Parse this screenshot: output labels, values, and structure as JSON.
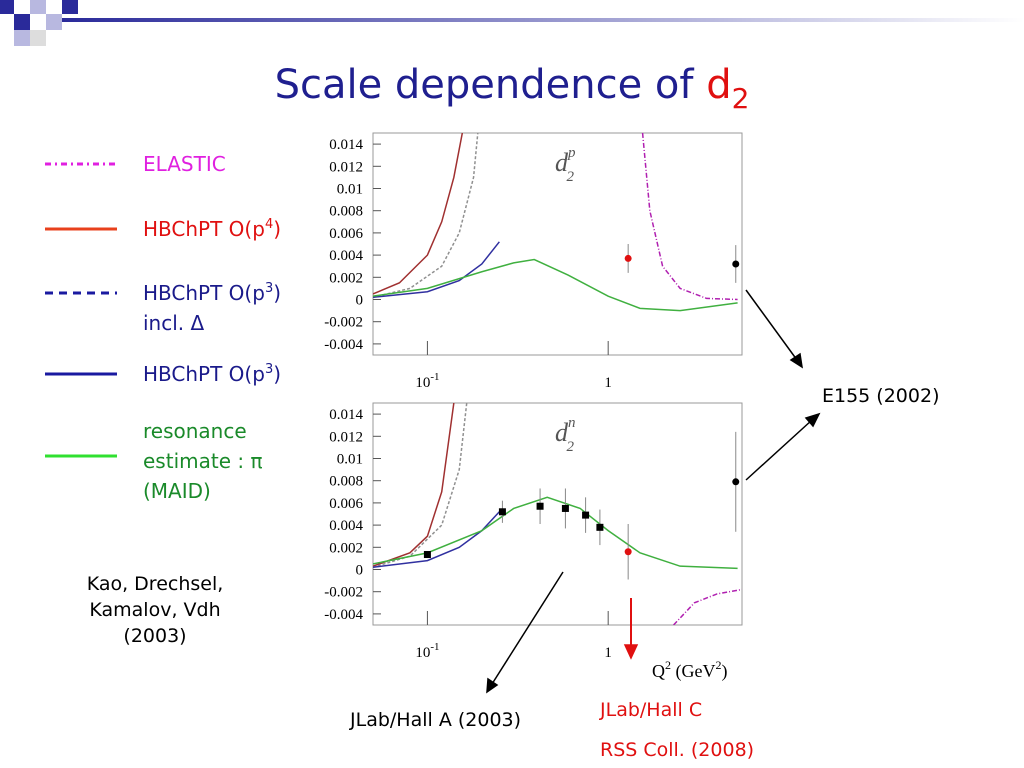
{
  "title": {
    "text": "Scale dependence of ",
    "symbol": "d",
    "subscript": "2"
  },
  "legend": [
    {
      "color": "#e020e0",
      "dash": "6 4 2 4",
      "lines": [
        {
          "text": "ELASTIC"
        }
      ]
    },
    {
      "color": "#e8401c",
      "dash": "",
      "lines": [
        {
          "text": "HBChPT O(p",
          "sup": "4",
          "tail": ")"
        }
      ]
    },
    {
      "color": "#1a1aa0",
      "dash": "8 6",
      "lines": [
        {
          "text": "HBChPT O(p",
          "sup": "3",
          "tail": ")"
        },
        {
          "text": "incl. Δ"
        }
      ]
    },
    {
      "color": "#1a1aa0",
      "dash": "",
      "lines": [
        {
          "text": "HBChPT O(p",
          "sup": "3",
          "tail": ")"
        }
      ]
    },
    {
      "color": "#30e030",
      "dash": "",
      "lines": [
        {
          "text": "resonance"
        },
        {
          "text": "estimate : π"
        },
        {
          "text": "(MAID)"
        }
      ]
    }
  ],
  "annotations": {
    "authors": [
      "Kao, Drechsel,",
      "Kamalov, Vdh",
      "(2003)"
    ],
    "e155": "E155  (2002)",
    "halla": "JLab/Hall A (2003)",
    "hallc": [
      "JLab/Hall C",
      "RSS Coll. (2008)"
    ]
  },
  "chart_data": [
    {
      "type": "line",
      "label": {
        "symbol": "d",
        "subscript": "2",
        "superscript": "p"
      },
      "xscale": "log",
      "xlim": [
        0.05,
        5.5
      ],
      "xticks": [
        {
          "value": 0.1,
          "label": "10",
          "exponent": "-1"
        },
        1
      ],
      "ylim": [
        -0.005,
        0.015
      ],
      "yticks": [
        0.014,
        0.012,
        0.01,
        0.008,
        0.006,
        0.004,
        0.002,
        0,
        -0.002,
        -0.004
      ],
      "grid": false,
      "series": [
        {
          "color": "#a03030",
          "dash": "",
          "x": [
            0.05,
            0.07,
            0.1,
            0.12,
            0.14,
            0.156
          ],
          "values": [
            0.0005,
            0.0015,
            0.004,
            0.007,
            0.011,
            0.015
          ]
        },
        {
          "color": "#909090",
          "dash": "3 2",
          "x": [
            0.05,
            0.08,
            0.12,
            0.15,
            0.18,
            0.19
          ],
          "values": [
            0.0002,
            0.001,
            0.003,
            0.006,
            0.011,
            0.015
          ]
        },
        {
          "color": "#3030a0",
          "dash": "",
          "x": [
            0.05,
            0.1,
            0.15,
            0.2,
            0.25
          ],
          "values": [
            0.0002,
            0.0007,
            0.0017,
            0.0032,
            0.0052
          ]
        },
        {
          "color": "#40b040",
          "dash": "",
          "x": [
            0.05,
            0.1,
            0.2,
            0.3,
            0.39,
            0.6,
            1,
            1.5,
            2.5,
            5.2
          ],
          "values": [
            0.0003,
            0.001,
            0.0025,
            0.0033,
            0.0036,
            0.0022,
            0.0003,
            -0.0008,
            -0.001,
            -0.0003
          ]
        },
        {
          "color": "#b020b0",
          "dash": "5 2 1 2",
          "x": [
            1.55,
            1.7,
            2.0,
            2.5,
            3.5,
            5.2
          ],
          "values": [
            0.015,
            0.008,
            0.003,
            0.001,
            0.0001,
            0
          ]
        }
      ],
      "points": [
        {
          "color": "#e01010",
          "marker": "circle",
          "x": [
            1.29
          ],
          "values": [
            0.0037
          ],
          "errors": [
            0.0013
          ]
        },
        {
          "color": "#000000",
          "marker": "circle",
          "x": [
            5.08
          ],
          "values": [
            0.0032
          ],
          "errors": [
            0.0017
          ]
        }
      ]
    },
    {
      "type": "line",
      "label": {
        "symbol": "d",
        "subscript": "2",
        "superscript": "n"
      },
      "xlabel": {
        "text": "Q",
        "sup": "2",
        "tail": " (GeV",
        "sup2": "2",
        "end": ")"
      },
      "xscale": "log",
      "xlim": [
        0.05,
        5.5
      ],
      "xticks": [
        {
          "value": 0.1,
          "label": "10",
          "exponent": "-1"
        },
        1
      ],
      "ylim": [
        -0.005,
        0.015
      ],
      "yticks": [
        0.014,
        0.012,
        0.01,
        0.008,
        0.006,
        0.004,
        0.002,
        0,
        -0.002,
        -0.004
      ],
      "grid": false,
      "series": [
        {
          "color": "#a03030",
          "dash": "",
          "x": [
            0.05,
            0.08,
            0.1,
            0.12,
            0.14
          ],
          "values": [
            0.0003,
            0.0015,
            0.003,
            0.007,
            0.015
          ]
        },
        {
          "color": "#909090",
          "dash": "3 2",
          "x": [
            0.05,
            0.08,
            0.12,
            0.15,
            0.165
          ],
          "values": [
            0.0002,
            0.0012,
            0.004,
            0.009,
            0.015
          ]
        },
        {
          "color": "#3030a0",
          "dash": "",
          "x": [
            0.05,
            0.1,
            0.15,
            0.2,
            0.25
          ],
          "values": [
            0.0002,
            0.0008,
            0.002,
            0.0035,
            0.0052
          ]
        },
        {
          "color": "#40b040",
          "dash": "",
          "x": [
            0.05,
            0.1,
            0.2,
            0.3,
            0.46,
            0.7,
            1,
            1.5,
            2.5,
            5.2
          ],
          "values": [
            0.0005,
            0.0015,
            0.0035,
            0.0055,
            0.0065,
            0.0055,
            0.0035,
            0.0015,
            0.0003,
            0.0001
          ]
        },
        {
          "color": "#b020b0",
          "dash": "5 2 1 2",
          "x": [
            2.3,
            3,
            4,
            5.5
          ],
          "values": [
            -0.005,
            -0.003,
            -0.0022,
            -0.0018
          ]
        }
      ],
      "points": [
        {
          "color": "#000000",
          "marker": "square",
          "x": [
            0.1,
            0.26,
            0.42,
            0.58,
            0.75,
            0.9
          ],
          "values": [
            0.00135,
            0.0052,
            0.0057,
            0.0055,
            0.0049,
            0.0038
          ],
          "errors": [
            0.0003,
            0.001,
            0.0016,
            0.0018,
            0.0016,
            0.0016
          ]
        },
        {
          "color": "#e01010",
          "marker": "circle",
          "x": [
            1.29
          ],
          "values": [
            0.0016
          ],
          "errors": [
            0.0025
          ]
        },
        {
          "color": "#000000",
          "marker": "circle",
          "x": [
            5.08
          ],
          "values": [
            0.0079
          ],
          "errors": [
            0.0045
          ]
        }
      ]
    }
  ]
}
